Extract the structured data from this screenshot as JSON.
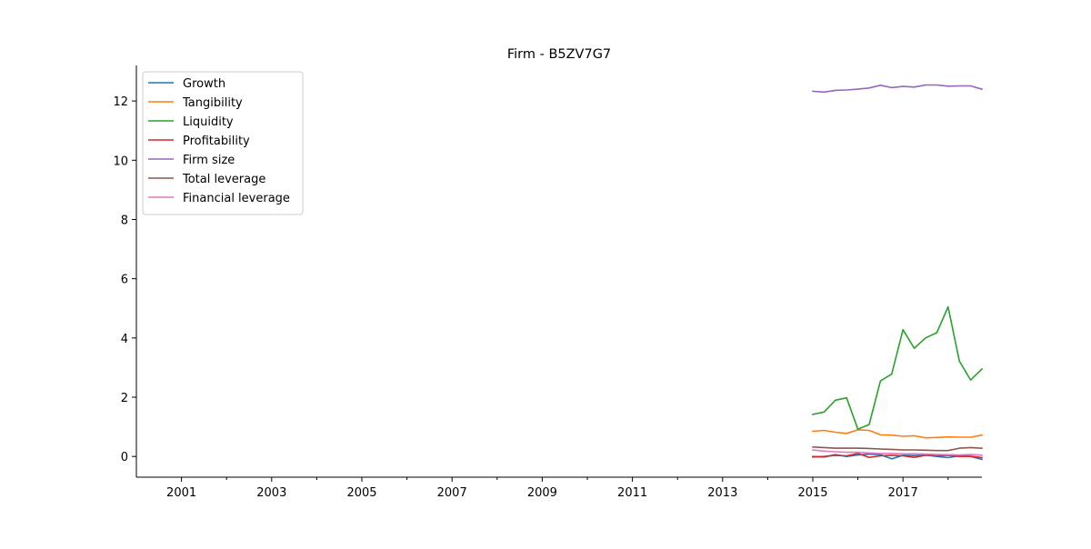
{
  "chart_data": {
    "type": "line",
    "title": "Firm - B5ZV7G7",
    "xlabel": "",
    "ylabel": "",
    "xlim": [
      2000.0,
      2018.75
    ],
    "ylim": [
      -0.7,
      13.2
    ],
    "x_ticks": [
      {
        "value": 2001,
        "label": "2001"
      },
      {
        "value": 2003,
        "label": "2003"
      },
      {
        "value": 2005,
        "label": "2005"
      },
      {
        "value": 2007,
        "label": "2007"
      },
      {
        "value": 2009,
        "label": "2009"
      },
      {
        "value": 2011,
        "label": "2011"
      },
      {
        "value": 2013,
        "label": "2013"
      },
      {
        "value": 2015,
        "label": "2015"
      },
      {
        "value": 2017,
        "label": "2017"
      }
    ],
    "x_minor_ticks": [
      2002,
      2004,
      2006,
      2008,
      2010,
      2012,
      2014,
      2016,
      2018
    ],
    "y_ticks": [
      {
        "value": 0,
        "label": "0"
      },
      {
        "value": 2,
        "label": "2"
      },
      {
        "value": 4,
        "label": "4"
      },
      {
        "value": 6,
        "label": "6"
      },
      {
        "value": 8,
        "label": "8"
      },
      {
        "value": 10,
        "label": "10"
      },
      {
        "value": 12,
        "label": "12"
      }
    ],
    "grid": false,
    "legend_position": "top-left",
    "x": [
      2015.0,
      2015.25,
      2015.5,
      2015.75,
      2016.0,
      2016.25,
      2016.5,
      2016.75,
      2017.0,
      2017.25,
      2017.5,
      2017.75,
      2018.0,
      2018.25,
      2018.5,
      2018.75
    ],
    "series": [
      {
        "name": "Growth",
        "color": "#1f77b4",
        "values": [
          0.0,
          -0.02,
          0.06,
          0.0,
          0.05,
          0.08,
          0.06,
          -0.08,
          0.04,
          0.03,
          0.05,
          0.0,
          -0.04,
          0.02,
          0.0,
          -0.1
        ]
      },
      {
        "name": "Tangibility",
        "color": "#ff7f0e",
        "values": [
          0.85,
          0.88,
          0.82,
          0.78,
          0.9,
          0.88,
          0.73,
          0.72,
          0.68,
          0.7,
          0.63,
          0.64,
          0.66,
          0.65,
          0.65,
          0.72
        ]
      },
      {
        "name": "Liquidity",
        "color": "#2ca02c",
        "values": [
          1.42,
          1.5,
          1.9,
          1.98,
          0.92,
          1.08,
          2.55,
          2.78,
          4.28,
          3.65,
          4.0,
          4.18,
          5.05,
          3.22,
          2.58,
          2.95
        ]
      },
      {
        "name": "Profitability",
        "color": "#d62728",
        "values": [
          -0.02,
          0.0,
          0.04,
          0.02,
          0.1,
          -0.03,
          0.02,
          0.04,
          0.02,
          -0.03,
          0.04,
          0.02,
          0.04,
          0.0,
          0.01,
          -0.04
        ]
      },
      {
        "name": "Firm size",
        "color": "#9467bd",
        "values": [
          12.33,
          12.3,
          12.36,
          12.37,
          12.4,
          12.44,
          12.53,
          12.45,
          12.49,
          12.47,
          12.54,
          12.54,
          12.5,
          12.51,
          12.51,
          12.4
        ]
      },
      {
        "name": "Total leverage",
        "color": "#8c564b",
        "values": [
          0.32,
          0.3,
          0.28,
          0.28,
          0.28,
          0.27,
          0.25,
          0.24,
          0.22,
          0.22,
          0.21,
          0.2,
          0.2,
          0.28,
          0.3,
          0.28
        ]
      },
      {
        "name": "Financial leverage",
        "color": "#e377c2",
        "values": [
          0.22,
          0.18,
          0.16,
          0.14,
          0.14,
          0.12,
          0.1,
          0.1,
          0.09,
          0.09,
          0.08,
          0.07,
          0.06,
          0.05,
          0.07,
          0.04
        ]
      }
    ]
  }
}
